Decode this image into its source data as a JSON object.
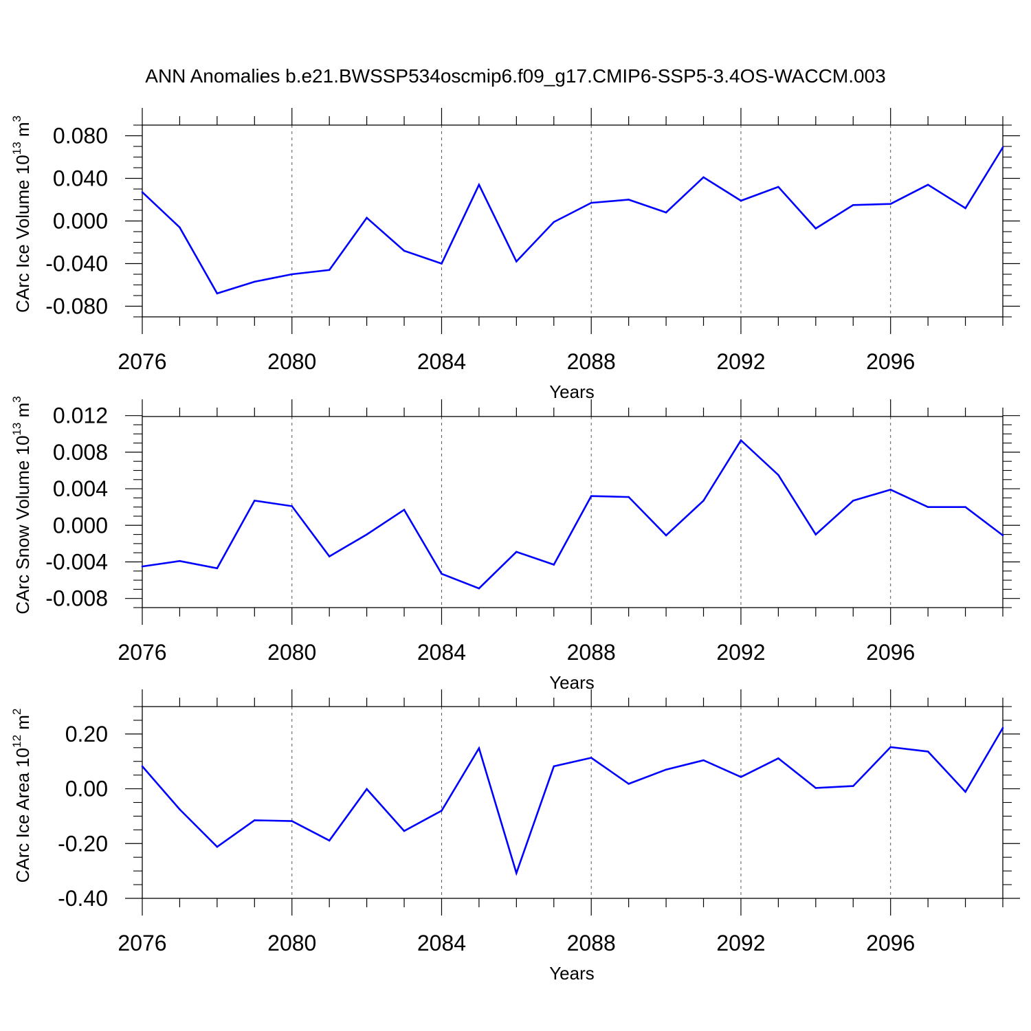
{
  "title": "ANN Anomalies b.e21.BWSSP534oscmip6.f09_g17.CMIP6-SSP5-3.4OS-WACCM.003",
  "line_color": "#0000ff",
  "chart_data": [
    {
      "type": "line",
      "ylabel_main": "CArc Ice Volume 10",
      "ylabel_exp": "13",
      "ylabel_unit": " m",
      "ylabel_unit_exp": "3",
      "xlabel": "Years",
      "xlim": [
        2076,
        2099
      ],
      "ylim": [
        -0.09,
        0.09
      ],
      "yticks": [
        0.08,
        0.04,
        0.0,
        -0.04,
        -0.08
      ],
      "ytick_labels": [
        "0.080",
        "0.040",
        "0.000",
        "-0.040",
        "-0.080"
      ],
      "ytick_minor_step": 0.01,
      "xticks": [
        2076,
        2080,
        2084,
        2088,
        2092,
        2096
      ],
      "xtick_labels": [
        "2076",
        "2080",
        "2084",
        "2088",
        "2092",
        "2096"
      ],
      "x": [
        2076,
        2077,
        2078,
        2079,
        2080,
        2081,
        2082,
        2083,
        2084,
        2085,
        2086,
        2087,
        2088,
        2089,
        2090,
        2091,
        2092,
        2093,
        2094,
        2095,
        2096,
        2097,
        2098,
        2099
      ],
      "series": [
        {
          "name": "CArc Ice Volume",
          "values": [
            0.027,
            -0.006,
            -0.068,
            -0.057,
            -0.05,
            -0.046,
            0.003,
            -0.028,
            -0.04,
            0.034,
            -0.038,
            -0.001,
            0.017,
            0.02,
            0.008,
            0.041,
            0.019,
            0.032,
            -0.007,
            0.015,
            0.016,
            0.034,
            0.012,
            0.069
          ]
        }
      ]
    },
    {
      "type": "line",
      "ylabel_main": "CArc Snow Volume 10",
      "ylabel_exp": "13",
      "ylabel_unit": " m",
      "ylabel_unit_exp": "3",
      "xlabel": "Years",
      "xlim": [
        2076,
        2099
      ],
      "ylim": [
        -0.009,
        0.0119
      ],
      "yticks": [
        0.012,
        0.008,
        0.004,
        0.0,
        -0.004,
        -0.008
      ],
      "ytick_labels": [
        "0.012",
        "0.008",
        "0.004",
        "0.000",
        "-0.004",
        "-0.008"
      ],
      "ytick_minor_step": 0.001,
      "xticks": [
        2076,
        2080,
        2084,
        2088,
        2092,
        2096
      ],
      "xtick_labels": [
        "2076",
        "2080",
        "2084",
        "2088",
        "2092",
        "2096"
      ],
      "x": [
        2076,
        2077,
        2078,
        2079,
        2080,
        2081,
        2082,
        2083,
        2084,
        2085,
        2086,
        2087,
        2088,
        2089,
        2090,
        2091,
        2092,
        2093,
        2094,
        2095,
        2096,
        2097,
        2098,
        2099
      ],
      "series": [
        {
          "name": "CArc Snow Volume",
          "values": [
            -0.0045,
            -0.0039,
            -0.0047,
            0.0027,
            0.0021,
            -0.0034,
            -0.001,
            0.0017,
            -0.0053,
            -0.0069,
            -0.0029,
            -0.0043,
            0.0032,
            0.0031,
            -0.0011,
            0.0027,
            0.0093,
            0.0055,
            -0.001,
            0.0027,
            0.0039,
            0.002,
            0.002,
            -0.0011
          ]
        }
      ]
    },
    {
      "type": "line",
      "ylabel_main": "CArc Ice Area 10",
      "ylabel_exp": "12",
      "ylabel_unit": " m",
      "ylabel_unit_exp": "2",
      "xlabel": "Years",
      "xlim": [
        2076,
        2099
      ],
      "ylim": [
        -0.4,
        0.3
      ],
      "yticks": [
        0.2,
        0.0,
        -0.2,
        -0.4
      ],
      "ytick_labels": [
        "0.20",
        "0.00",
        "-0.20",
        "-0.40"
      ],
      "ytick_minor_step": 0.05,
      "xticks": [
        2076,
        2080,
        2084,
        2088,
        2092,
        2096
      ],
      "xtick_labels": [
        "2076",
        "2080",
        "2084",
        "2088",
        "2092",
        "2096"
      ],
      "x": [
        2076,
        2077,
        2078,
        2079,
        2080,
        2081,
        2082,
        2083,
        2084,
        2085,
        2086,
        2087,
        2088,
        2089,
        2090,
        2091,
        2092,
        2093,
        2094,
        2095,
        2096,
        2097,
        2098,
        2099
      ],
      "series": [
        {
          "name": "CArc Ice Area",
          "values": [
            0.082,
            -0.075,
            -0.212,
            -0.115,
            -0.118,
            -0.189,
            -0.001,
            -0.154,
            -0.08,
            0.148,
            -0.308,
            0.082,
            0.113,
            0.018,
            0.07,
            0.104,
            0.043,
            0.111,
            0.003,
            0.01,
            0.152,
            0.136,
            -0.011,
            0.222
          ]
        }
      ]
    }
  ]
}
